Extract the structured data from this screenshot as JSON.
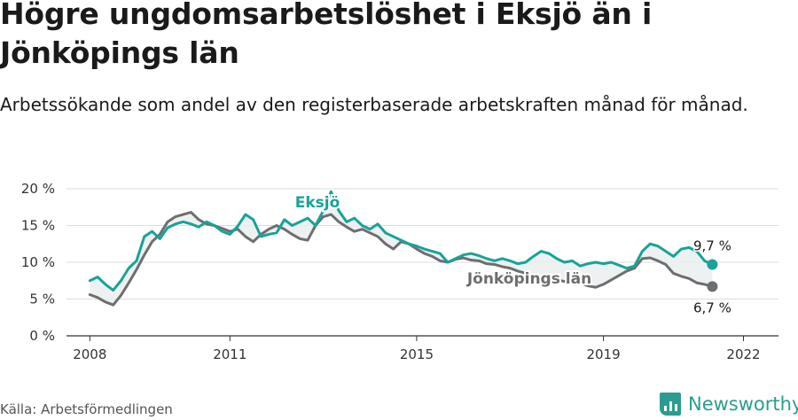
{
  "title": "Högre ungdomsarbetslöshet i Eksjö än i Jönköpings län",
  "subtitle": "Arbetssökande som andel av den registerbaserade arbetskraften månad för månad.",
  "source": "Källa: Arbetsförmedlingen",
  "brand": {
    "name": "Newsworthy",
    "icon": "bar-chart-icon"
  },
  "colors": {
    "eksjo": "#17a398",
    "lan": "#6e6e70",
    "grid": "#dddddd",
    "text": "#1a1a1a"
  },
  "chart_data": {
    "type": "line",
    "title": "Högre ungdomsarbetslöshet i Eksjö än i Jönköpings län",
    "xlabel": "",
    "ylabel": "",
    "ylim": [
      0,
      20
    ],
    "y_ticks": [
      0,
      5,
      10,
      15,
      20
    ],
    "y_tick_labels": [
      "0 %",
      "5 %",
      "10 %",
      "15 %",
      "20 %"
    ],
    "x_ticks": [
      2008,
      2011,
      2015,
      2019,
      2022
    ],
    "x_tick_labels": [
      "2008",
      "2011",
      "2015",
      "2019",
      "2022"
    ],
    "xlim": [
      2007.5,
      2022.75
    ],
    "grid": true,
    "series": [
      {
        "name": "Eksjö",
        "label": "Eksjö",
        "end_label": "9,7 %",
        "x_start": 2008.0,
        "step_months": 2,
        "values": [
          7.5,
          8.0,
          7.0,
          6.2,
          7.5,
          9.2,
          10.2,
          13.5,
          14.2,
          13.2,
          14.7,
          15.2,
          15.5,
          15.2,
          14.8,
          15.5,
          15.0,
          14.2,
          13.8,
          14.9,
          16.5,
          15.8,
          13.5,
          13.8,
          14.0,
          15.8,
          15.0,
          15.5,
          16.0,
          15.0,
          17.0,
          19.6,
          17.0,
          15.5,
          16.0,
          15.0,
          14.5,
          15.2,
          14.0,
          13.5,
          13.0,
          12.5,
          12.2,
          11.8,
          11.5,
          11.2,
          10.0,
          10.5,
          11.0,
          11.2,
          10.9,
          10.5,
          10.2,
          10.5,
          10.2,
          9.8,
          10.0,
          10.8,
          11.5,
          11.2,
          10.5,
          10.0,
          10.2,
          9.5,
          9.8,
          10.0,
          9.8,
          10.0,
          9.6,
          9.2,
          9.5,
          11.5,
          12.5,
          12.2,
          11.5,
          10.8,
          11.8,
          12.0,
          11.5,
          10.2,
          9.7
        ]
      },
      {
        "name": "Jönköpings län",
        "label": "Jönköpings län",
        "end_label": "6,7 %",
        "x_start": 2008.0,
        "step_months": 2,
        "values": [
          5.6,
          5.2,
          4.6,
          4.2,
          5.5,
          7.2,
          9.0,
          11.0,
          12.8,
          13.8,
          15.5,
          16.2,
          16.5,
          16.8,
          15.8,
          15.2,
          15.0,
          14.6,
          14.2,
          14.5,
          13.5,
          12.8,
          13.8,
          14.5,
          15.0,
          14.5,
          13.8,
          13.2,
          13.0,
          15.0,
          16.2,
          16.5,
          15.5,
          14.8,
          14.2,
          14.5,
          14.0,
          13.5,
          12.5,
          11.8,
          12.8,
          12.5,
          11.8,
          11.2,
          10.8,
          10.2,
          10.0,
          10.4,
          10.6,
          10.3,
          10.2,
          9.8,
          9.7,
          9.4,
          9.2,
          8.8,
          8.5,
          8.2,
          8.0,
          7.7,
          7.6,
          7.4,
          7.6,
          7.2,
          6.8,
          6.6,
          7.0,
          7.6,
          8.2,
          8.8,
          9.2,
          10.5,
          10.6,
          10.2,
          9.7,
          8.5,
          8.1,
          7.8,
          7.2,
          7.0,
          6.7
        ]
      }
    ]
  }
}
